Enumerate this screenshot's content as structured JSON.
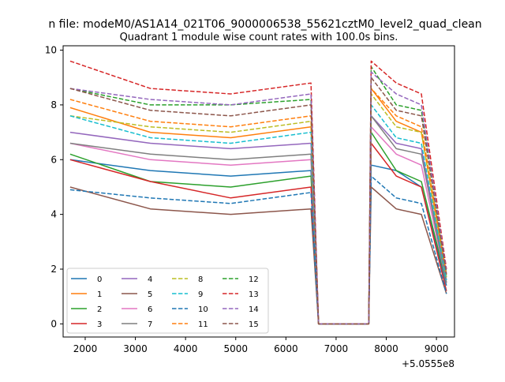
{
  "chart_data": {
    "type": "line",
    "suptitle": "n file: modeM0/AS1A14_021T06_9000006538_55621cztM0_level2_quad_clean",
    "title": "Quadrant 1 module wise count rates with 100.0s bins.",
    "xlabel": "",
    "ylabel": "",
    "x_offset_label": "+5.0555e8",
    "xlim": [
      1560,
      9360
    ],
    "ylim": [
      -0.48,
      10.16
    ],
    "x_ticks": [
      2000,
      3000,
      4000,
      5000,
      6000,
      7000,
      8000,
      9000
    ],
    "x_tick_labels": [
      "2000",
      "3000",
      "4000",
      "5000",
      "6000",
      "7000",
      "8000",
      "9000"
    ],
    "y_ticks": [
      0,
      2,
      4,
      6,
      8,
      10
    ],
    "y_tick_labels": [
      "0",
      "2",
      "4",
      "6",
      "8",
      "10"
    ],
    "grid": false,
    "legend_placement": "lower-left",
    "x_segments": [
      [
        1700,
        6500
      ],
      [
        6650,
        7650
      ],
      [
        7700,
        9200
      ]
    ],
    "series": [
      {
        "name": "0",
        "color": "#1f77b4",
        "dash": "solid",
        "seg_values": [
          [
            6.0,
            5.6,
            5.4,
            5.6
          ],
          [
            0,
            0
          ],
          [
            5.8,
            5.6,
            5.0,
            1.4
          ]
        ]
      },
      {
        "name": "1",
        "color": "#ff7f0e",
        "dash": "solid",
        "seg_values": [
          [
            7.9,
            7.0,
            6.8,
            7.2
          ],
          [
            0,
            0
          ],
          [
            8.6,
            7.4,
            7.0,
            1.7
          ]
        ]
      },
      {
        "name": "2",
        "color": "#2ca02c",
        "dash": "solid",
        "seg_values": [
          [
            6.2,
            5.2,
            5.0,
            5.4
          ],
          [
            0,
            0
          ],
          [
            7.0,
            5.6,
            5.2,
            1.5
          ]
        ]
      },
      {
        "name": "3",
        "color": "#d62728",
        "dash": "solid",
        "seg_values": [
          [
            6.0,
            5.2,
            4.6,
            5.0
          ],
          [
            0,
            0
          ],
          [
            6.6,
            5.4,
            5.0,
            1.2
          ]
        ]
      },
      {
        "name": "4",
        "color": "#9467bd",
        "dash": "solid",
        "seg_values": [
          [
            7.0,
            6.6,
            6.4,
            6.6
          ],
          [
            0,
            0
          ],
          [
            7.6,
            6.6,
            6.4,
            1.6
          ]
        ]
      },
      {
        "name": "5",
        "color": "#8c564b",
        "dash": "solid",
        "seg_values": [
          [
            5.0,
            4.2,
            4.0,
            4.2
          ],
          [
            0,
            0
          ],
          [
            5.0,
            4.2,
            4.0,
            1.1
          ]
        ]
      },
      {
        "name": "6",
        "color": "#e377c2",
        "dash": "solid",
        "seg_values": [
          [
            6.6,
            6.0,
            5.8,
            6.0
          ],
          [
            0,
            0
          ],
          [
            7.2,
            6.2,
            5.8,
            1.5
          ]
        ]
      },
      {
        "name": "7",
        "color": "#7f7f7f",
        "dash": "solid",
        "seg_values": [
          [
            6.6,
            6.2,
            6.0,
            6.2
          ],
          [
            0,
            0
          ],
          [
            7.6,
            6.4,
            6.2,
            1.5
          ]
        ]
      },
      {
        "name": "8",
        "color": "#bcbd22",
        "dash": "dashed",
        "seg_values": [
          [
            7.6,
            7.2,
            7.0,
            7.4
          ],
          [
            0,
            0
          ],
          [
            8.4,
            7.2,
            7.0,
            1.7
          ]
        ]
      },
      {
        "name": "9",
        "color": "#17becf",
        "dash": "dashed",
        "seg_values": [
          [
            7.6,
            6.8,
            6.6,
            7.0
          ],
          [
            0,
            0
          ],
          [
            8.0,
            6.8,
            6.6,
            1.6
          ]
        ]
      },
      {
        "name": "10",
        "color": "#1f77b4",
        "dash": "dashed",
        "seg_values": [
          [
            4.9,
            4.6,
            4.4,
            4.8
          ],
          [
            0,
            0
          ],
          [
            5.4,
            4.6,
            4.4,
            1.1
          ]
        ]
      },
      {
        "name": "11",
        "color": "#ff7f0e",
        "dash": "dashed",
        "seg_values": [
          [
            8.2,
            7.4,
            7.2,
            7.6
          ],
          [
            0,
            0
          ],
          [
            8.6,
            7.6,
            7.2,
            1.8
          ]
        ]
      },
      {
        "name": "12",
        "color": "#2ca02c",
        "dash": "dashed",
        "seg_values": [
          [
            8.6,
            8.0,
            8.0,
            8.2
          ],
          [
            0,
            0
          ],
          [
            9.4,
            8.0,
            7.8,
            1.9
          ]
        ]
      },
      {
        "name": "13",
        "color": "#d62728",
        "dash": "dashed",
        "seg_values": [
          [
            9.6,
            8.6,
            8.4,
            8.8
          ],
          [
            0,
            0
          ],
          [
            9.6,
            8.8,
            8.4,
            2.0
          ]
        ]
      },
      {
        "name": "14",
        "color": "#9467bd",
        "dash": "dashed",
        "seg_values": [
          [
            8.6,
            8.2,
            8.0,
            8.4
          ],
          [
            0,
            0
          ],
          [
            9.2,
            8.4,
            8.0,
            1.9
          ]
        ]
      },
      {
        "name": "15",
        "color": "#8c564b",
        "dash": "dashed",
        "seg_values": [
          [
            8.6,
            7.8,
            7.6,
            8.0
          ],
          [
            0,
            0
          ],
          [
            9.0,
            7.8,
            7.6,
            1.8
          ]
        ]
      }
    ]
  }
}
